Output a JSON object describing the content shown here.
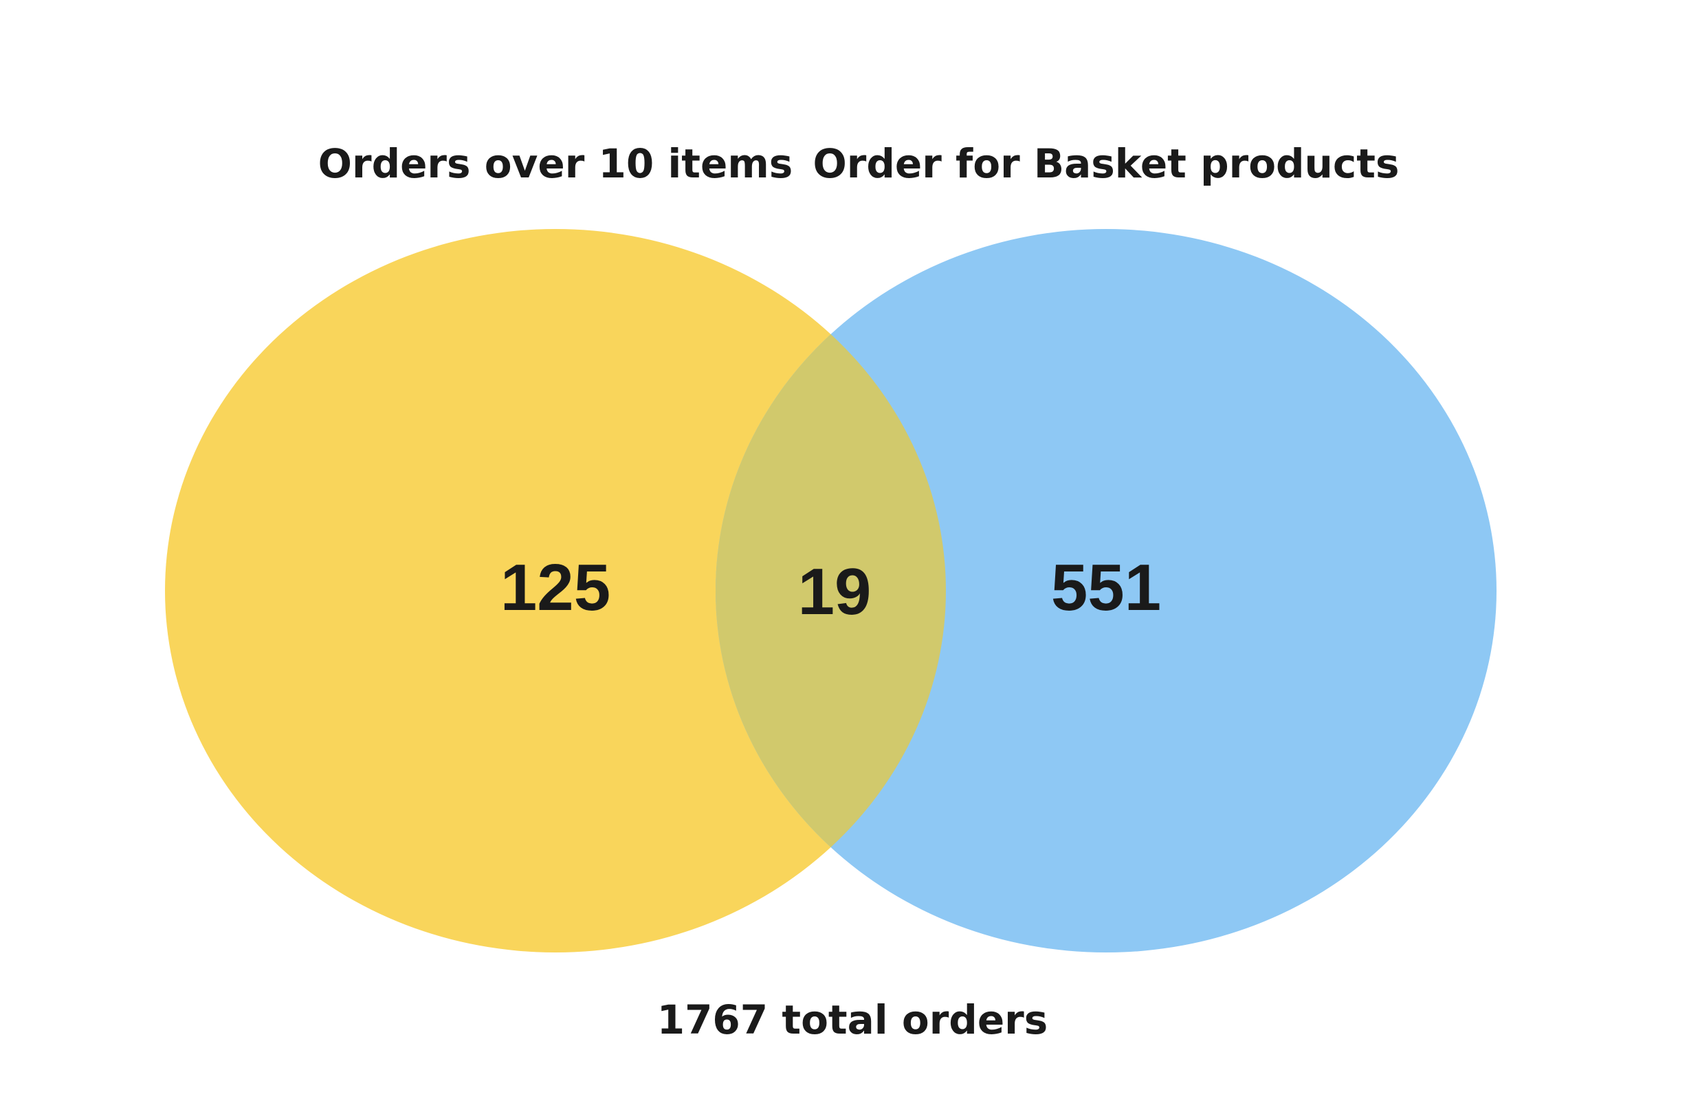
{
  "sets": [
    {
      "label": "Orders over 10 items",
      "only_count": "125",
      "color": "#F9D55B"
    },
    {
      "label": "Order for Basket products",
      "only_count": "551",
      "color": "#8EC8F4"
    }
  ],
  "intersection": {
    "count": "19",
    "color": "#D1C96C"
  },
  "total": "1767 total orders"
}
